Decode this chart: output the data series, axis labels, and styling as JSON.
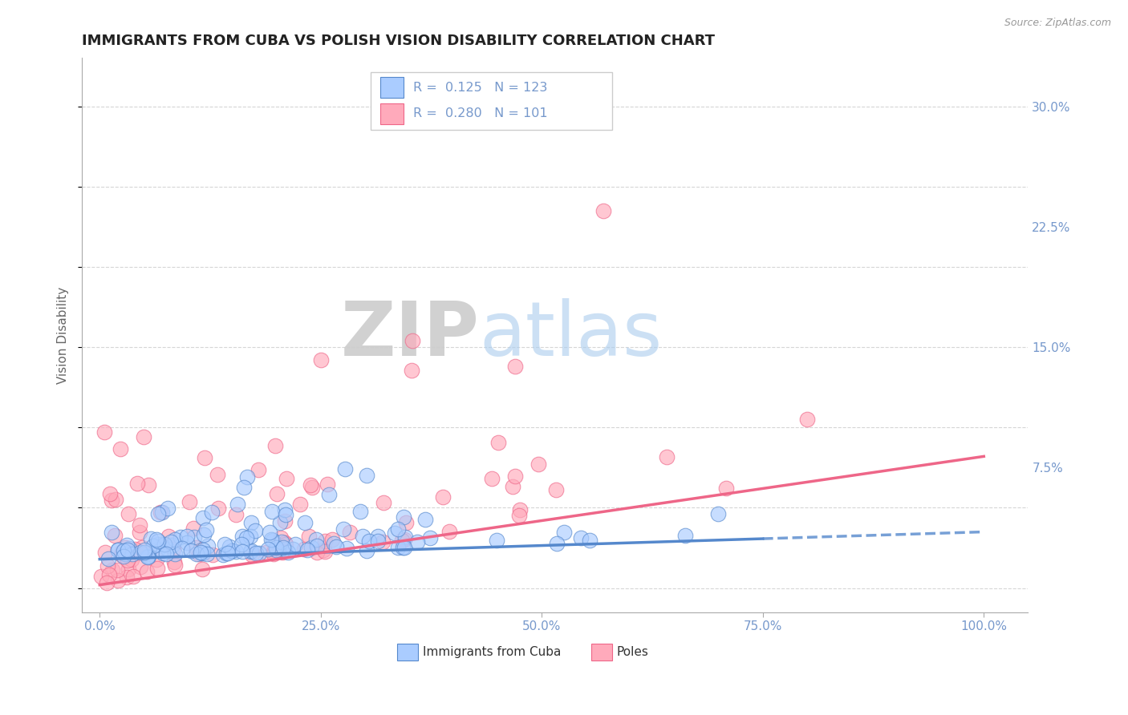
{
  "title": "IMMIGRANTS FROM CUBA VS POLISH VISION DISABILITY CORRELATION CHART",
  "source": "Source: ZipAtlas.com",
  "ylabel": "Vision Disability",
  "legend_labels": [
    "Immigrants from Cuba",
    "Poles"
  ],
  "r_values": [
    0.125,
    0.28
  ],
  "n_values": [
    123,
    101
  ],
  "x_ticks": [
    0.0,
    25.0,
    50.0,
    75.0,
    100.0
  ],
  "x_tick_labels": [
    "0.0%",
    "25.0%",
    "50.0%",
    "75.0%",
    "100.0%"
  ],
  "y_ticks": [
    0.0,
    7.5,
    15.0,
    22.5,
    30.0
  ],
  "y_tick_labels": [
    "",
    "7.5%",
    "15.0%",
    "22.5%",
    "30.0%"
  ],
  "xlim": [
    -2.0,
    105.0
  ],
  "ylim": [
    -1.5,
    33.0
  ],
  "color_blue": "#aaccff",
  "color_pink": "#ffaabb",
  "color_line_blue": "#5588cc",
  "color_line_pink": "#ee6688",
  "color_axis": "#7799cc",
  "background_color": "#ffffff",
  "title_fontsize": 13,
  "axis_label_fontsize": 11,
  "tick_fontsize": 11,
  "seed": 42,
  "blue_trend_solid_end": 75.0,
  "blue_trend_start_y": 1.8,
  "blue_trend_end_y": 3.5,
  "pink_trend_start_y": 0.2,
  "pink_trend_end_y": 8.2
}
